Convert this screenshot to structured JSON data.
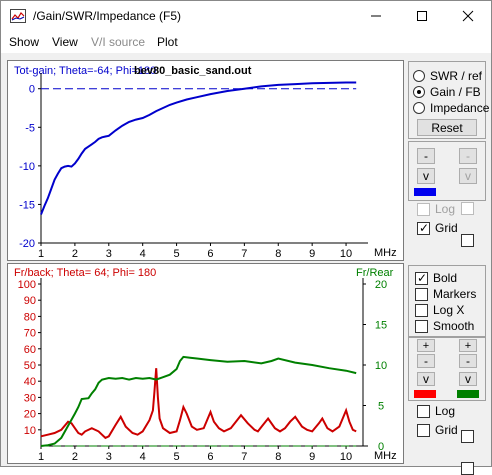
{
  "window": {
    "title": "/Gain/SWR/Impedance (F5)",
    "controls": [
      "minimize",
      "maximize",
      "close"
    ]
  },
  "menu": {
    "items": [
      {
        "label": "Show",
        "enabled": true
      },
      {
        "label": "View",
        "enabled": true
      },
      {
        "label": "V/I source",
        "enabled": false
      },
      {
        "label": "Plot",
        "enabled": true
      }
    ]
  },
  "top_plot": {
    "caption": "Tot-gain; Theta=-64; Phi=180",
    "caption_color": "#0000cc",
    "file_label": "bev80_basic_sand.out",
    "x_unit": "MHz"
  },
  "bottom_plot": {
    "caption": "Fr/back; Theta= 64; Phi= 180",
    "caption_color": "#cc0000",
    "right_caption": "Fr/Rear",
    "right_caption_color": "#008000",
    "x_unit": "MHz"
  },
  "top_controls": {
    "modes": [
      {
        "label": "SWR / ref",
        "selected": false
      },
      {
        "label": "Gain / FB",
        "selected": true
      },
      {
        "label": "Impedance",
        "selected": false
      }
    ],
    "reset_label": "Reset",
    "up_left": "-",
    "up_right": "-",
    "down_left": "v",
    "down_right": "v",
    "left_color": "#0000ee",
    "log_label": "Log",
    "log_checked": false,
    "grid_label": "Grid",
    "grid_checked": true
  },
  "bottom_controls": {
    "bold_label": "Bold",
    "bold_checked": true,
    "markers_label": "Markers",
    "markers_checked": false,
    "logx_label": "Log X",
    "logx_checked": false,
    "smooth_label": "Smooth",
    "smooth_checked": false,
    "plus_left": "+",
    "plus_right": "+",
    "minus_left": "-",
    "minus_right": "-",
    "down_left": "v",
    "down_right": "v",
    "left_color": "#ff0000",
    "right_color": "#008000",
    "log_label": "Log",
    "grid_label": "Grid"
  },
  "chart_data": [
    {
      "type": "line",
      "title": "Tot-gain; Theta=-64; Phi=180",
      "xlabel": "MHz",
      "xlim": [
        1,
        10.5
      ],
      "ylim": [
        -20,
        1
      ],
      "x_ticks": [
        "1",
        "2",
        "3",
        "4",
        "5",
        "6",
        "7",
        "8",
        "9",
        "10"
      ],
      "y_ticks": [
        "0",
        "-5",
        "-10",
        "-15",
        "-20"
      ],
      "grid": false,
      "series": [
        {
          "color": "#0000cc",
          "x": [
            1.0,
            1.1,
            1.2,
            1.3,
            1.4,
            1.5,
            1.6,
            1.7,
            1.8,
            1.9,
            2.0,
            2.1,
            2.2,
            2.3,
            2.4,
            2.5,
            2.6,
            2.7,
            2.8,
            2.9,
            3.0,
            3.2,
            3.4,
            3.6,
            3.8,
            4.0,
            4.2,
            4.4,
            4.6,
            4.8,
            5.0,
            5.3,
            5.6,
            6.0,
            6.5,
            7.0,
            7.5,
            8.0,
            8.5,
            9.0,
            9.5,
            10.0,
            10.3
          ],
          "y": [
            -16.3,
            -15.2,
            -14.2,
            -13.0,
            -11.8,
            -11.0,
            -10.3,
            -10.1,
            -10.0,
            -10.1,
            -9.7,
            -9.1,
            -8.4,
            -7.8,
            -7.5,
            -7.2,
            -6.9,
            -6.5,
            -6.3,
            -6.2,
            -6.1,
            -5.4,
            -4.8,
            -4.3,
            -4.0,
            -3.8,
            -3.4,
            -2.9,
            -2.5,
            -2.1,
            -1.8,
            -1.4,
            -1.1,
            -0.7,
            -0.3,
            0.0,
            0.3,
            0.5,
            0.6,
            0.7,
            0.75,
            0.8,
            0.8
          ]
        },
        {
          "color": "#0000cc",
          "dashed": true,
          "x": [
            1.0,
            10.3
          ],
          "y": [
            0,
            0
          ]
        }
      ]
    },
    {
      "type": "line",
      "title": "Fr/back; Theta= 64; Phi= 180",
      "xlabel": "MHz",
      "xlim": [
        1,
        10.5
      ],
      "ylim_left": [
        0,
        100
      ],
      "ylim_right": [
        0,
        20
      ],
      "right_label": "Fr/Rear",
      "x_ticks": [
        "1",
        "2",
        "3",
        "4",
        "5",
        "6",
        "7",
        "8",
        "9",
        "10"
      ],
      "y_ticks_left": [
        "100",
        "90",
        "80",
        "70",
        "60",
        "50",
        "40",
        "30",
        "20",
        "10"
      ],
      "y_ticks_right": [
        "20",
        "15",
        "10",
        "5",
        "0"
      ],
      "series": [
        {
          "color": "#cc0000",
          "axis": "left",
          "x": [
            1.0,
            1.2,
            1.4,
            1.6,
            1.8,
            1.9,
            2.0,
            2.1,
            2.2,
            2.3,
            2.5,
            2.7,
            2.8,
            2.9,
            3.0,
            3.2,
            3.35,
            3.5,
            3.7,
            3.85,
            4.0,
            4.2,
            4.3,
            4.35,
            4.4,
            4.45,
            4.5,
            4.6,
            4.8,
            5.0,
            5.1,
            5.2,
            5.3,
            5.45,
            5.6,
            5.8,
            5.9,
            6.0,
            6.1,
            6.25,
            6.4,
            6.6,
            6.75,
            6.9,
            7.1,
            7.3,
            7.4,
            7.55,
            7.7,
            7.9,
            8.05,
            8.2,
            8.35,
            8.5,
            8.7,
            8.85,
            9.0,
            9.2,
            9.3,
            9.45,
            9.6,
            9.8,
            9.9,
            10.0,
            10.1,
            10.2,
            10.3
          ],
          "y": [
            6,
            7,
            8,
            10,
            15,
            14,
            11,
            8,
            7,
            9,
            11,
            9,
            7,
            5,
            6,
            13,
            18,
            12,
            8,
            7,
            9,
            16,
            22,
            34,
            48,
            30,
            17,
            11,
            8,
            9,
            16,
            24,
            20,
            12,
            10,
            11,
            16,
            21,
            15,
            11,
            9,
            11,
            15,
            19,
            14,
            10,
            9,
            13,
            17,
            11,
            9,
            11,
            15,
            18,
            12,
            10,
            9,
            14,
            17,
            11,
            9,
            12,
            17,
            22,
            15,
            10,
            9
          ]
        },
        {
          "color": "#008000",
          "axis": "right",
          "x": [
            1.0,
            1.2,
            1.4,
            1.6,
            1.8,
            2.0,
            2.1,
            2.2,
            2.4,
            2.5,
            2.6,
            2.7,
            2.8,
            3.0,
            3.2,
            3.4,
            3.6,
            3.8,
            4.0,
            4.2,
            4.4,
            4.6,
            4.8,
            5.0,
            5.1,
            5.2,
            5.4,
            5.6,
            6.0,
            6.5,
            7.0,
            7.5,
            7.8,
            8.0,
            8.5,
            9.0,
            9.5,
            10.0,
            10.3
          ],
          "y": [
            0.0,
            0.1,
            0.3,
            1.0,
            2.5,
            4.0,
            4.8,
            5.8,
            5.9,
            6.5,
            7.0,
            7.8,
            8.2,
            8.4,
            8.3,
            8.4,
            8.2,
            8.4,
            8.3,
            8.4,
            8.2,
            8.5,
            8.8,
            9.5,
            10.5,
            11.0,
            10.9,
            10.8,
            10.6,
            10.4,
            10.5,
            10.2,
            10.5,
            10.8,
            10.3,
            10.0,
            9.6,
            9.3,
            9.0
          ]
        },
        {
          "color": "#008000",
          "axis": "right",
          "dashed": true,
          "x": [
            1.0,
            10.3
          ],
          "y": [
            0,
            0
          ]
        }
      ]
    }
  ]
}
